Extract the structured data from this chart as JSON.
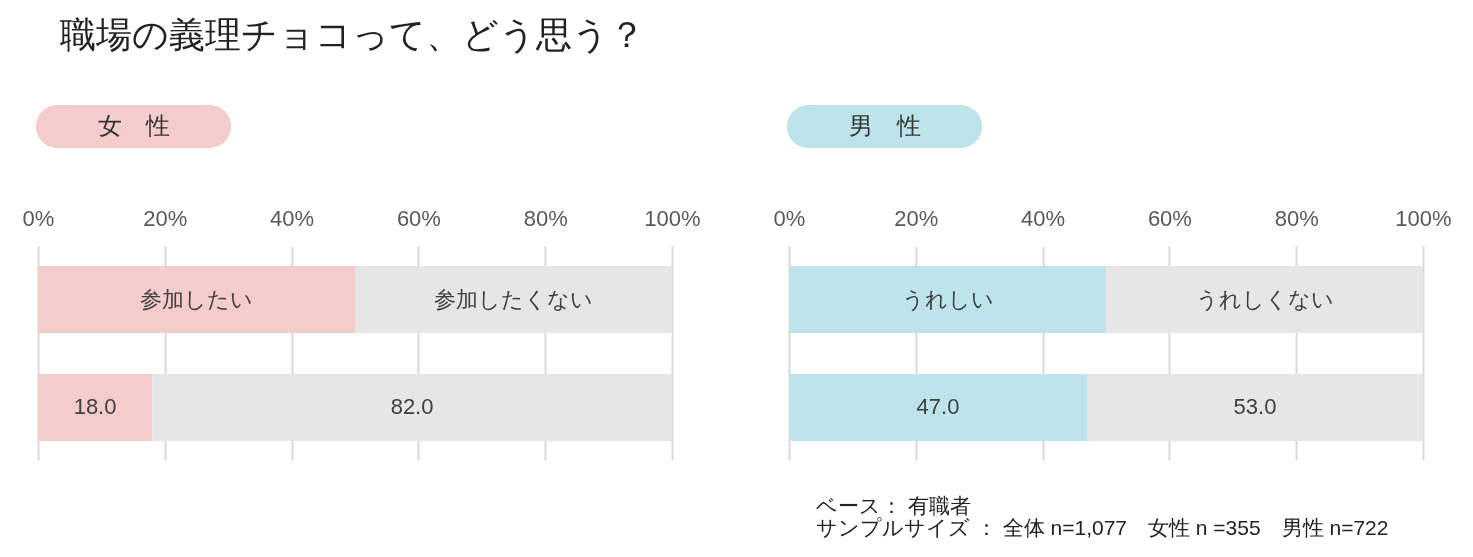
{
  "chart_data": [
    {
      "type": "bar",
      "orientation": "horizontal",
      "stacked": true,
      "title": "職場の義理チョコって、どう思う？",
      "subtitle": "女　性",
      "categories": [
        null
      ],
      "series": [
        {
          "name": "参加したい",
          "color": "#f4cccc",
          "values": [
            18.0
          ],
          "value_labels": [
            "18.0"
          ]
        },
        {
          "name": "参加したくない",
          "color": "#e6e6e6",
          "values": [
            82.0
          ],
          "value_labels": [
            "82.0"
          ]
        }
      ],
      "xlim": [
        0,
        100
      ],
      "xticks": [
        {
          "value": 0,
          "label": "0%"
        },
        {
          "value": 20,
          "label": "20%"
        },
        {
          "value": 40,
          "label": "40%"
        },
        {
          "value": 60,
          "label": "60%"
        },
        {
          "value": 80,
          "label": "80%"
        },
        {
          "value": 100,
          "label": "100%"
        }
      ],
      "grid": "x",
      "legend": "top"
    },
    {
      "type": "bar",
      "orientation": "horizontal",
      "stacked": true,
      "subtitle": "男　性",
      "categories": [
        null
      ],
      "series": [
        {
          "name": "うれしい",
          "color": "#bde3eb",
          "values": [
            47.0
          ],
          "value_labels": [
            "47.0"
          ]
        },
        {
          "name": "うれしくない",
          "color": "#e6e6e6",
          "values": [
            53.0
          ],
          "value_labels": [
            "53.0"
          ]
        }
      ],
      "xlim": [
        0,
        100
      ],
      "xticks": [
        {
          "value": 0,
          "label": "0%"
        },
        {
          "value": 20,
          "label": "20%"
        },
        {
          "value": 40,
          "label": "40%"
        },
        {
          "value": 60,
          "label": "60%"
        },
        {
          "value": 80,
          "label": "80%"
        },
        {
          "value": 100,
          "label": "100%"
        }
      ],
      "grid": "x",
      "legend": "top",
      "annotations": [
        "ベース： 有職者",
        "サンプルサイズ ： 全体 n=1,077　女性 n =355　男性 n=722"
      ]
    }
  ]
}
